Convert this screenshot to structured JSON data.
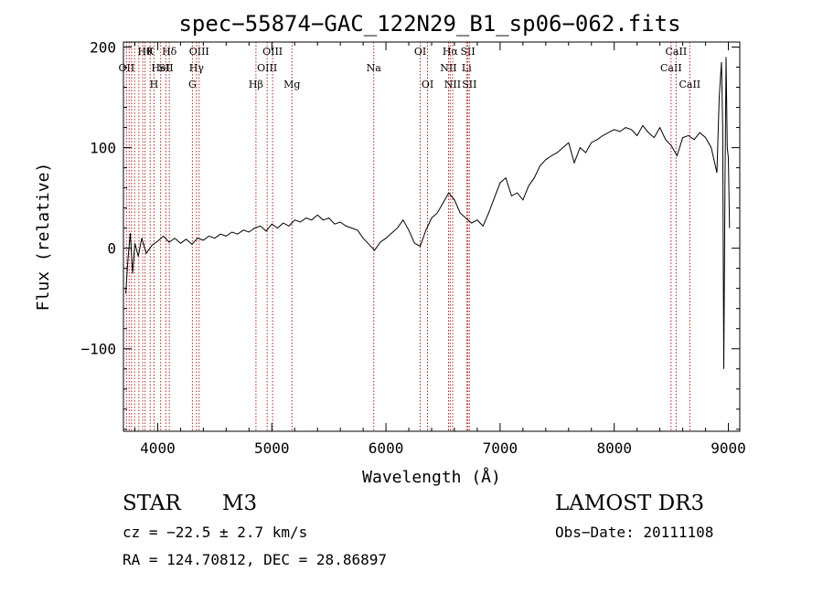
{
  "chart_data": {
    "type": "line",
    "title": "spec−55874−GAC_122N29_B1_sp06−062.fits",
    "xlabel": "Wavelength (Å)",
    "ylabel": "Flux (relative)",
    "xlim": [
      3700,
      9100
    ],
    "ylim": [
      -182,
      205
    ],
    "xticks": [
      {
        "value": 4000,
        "label": "4000"
      },
      {
        "value": 5000,
        "label": "5000"
      },
      {
        "value": 6000,
        "label": "6000"
      },
      {
        "value": 7000,
        "label": "7000"
      },
      {
        "value": 8000,
        "label": "8000"
      },
      {
        "value": 9000,
        "label": "9000"
      }
    ],
    "yticks": [
      {
        "value": -100,
        "label": "−100"
      },
      {
        "value": 0,
        "label": "0"
      },
      {
        "value": 100,
        "label": "100"
      },
      {
        "value": 200,
        "label": "200"
      }
    ],
    "grid": false,
    "series": [
      {
        "x": [
          3720,
          3740,
          3760,
          3780,
          3800,
          3830,
          3860,
          3900,
          3950,
          4000,
          4050,
          4100,
          4150,
          4200,
          4250,
          4300,
          4350,
          4400,
          4450,
          4500,
          4550,
          4600,
          4650,
          4700,
          4750,
          4800,
          4850,
          4900,
          4950,
          5000,
          5050,
          5100,
          5150,
          5200,
          5250,
          5300,
          5350,
          5400,
          5450,
          5500,
          5550,
          5600,
          5650,
          5700,
          5750,
          5800,
          5850,
          5900,
          5950,
          6000,
          6050,
          6100,
          6150,
          6200,
          6250,
          6300,
          6350,
          6400,
          6450,
          6500,
          6550,
          6600,
          6650,
          6700,
          6750,
          6800,
          6850,
          6900,
          6950,
          7000,
          7050,
          7100,
          7150,
          7200,
          7250,
          7300,
          7350,
          7400,
          7450,
          7500,
          7550,
          7600,
          7650,
          7700,
          7750,
          7800,
          7850,
          7900,
          7950,
          8000,
          8050,
          8100,
          8150,
          8200,
          8250,
          8300,
          8350,
          8400,
          8450,
          8500,
          8550,
          8600,
          8650,
          8700,
          8750,
          8800,
          8850,
          8900,
          8920,
          8940,
          8950,
          8960,
          8970,
          8980,
          8990,
          9000,
          9010
        ],
        "y": [
          -45,
          -10,
          15,
          -25,
          5,
          -8,
          10,
          -5,
          3,
          7,
          12,
          6,
          10,
          5,
          9,
          4,
          10,
          8,
          12,
          10,
          14,
          12,
          16,
          14,
          18,
          16,
          20,
          22,
          17,
          24,
          20,
          25,
          22,
          28,
          26,
          30,
          28,
          33,
          28,
          30,
          24,
          26,
          22,
          20,
          18,
          10,
          4,
          -2,
          6,
          10,
          15,
          20,
          28,
          18,
          5,
          2,
          18,
          30,
          35,
          45,
          55,
          48,
          35,
          30,
          25,
          28,
          22,
          35,
          50,
          65,
          70,
          52,
          55,
          48,
          62,
          70,
          82,
          88,
          92,
          95,
          100,
          105,
          85,
          100,
          95,
          105,
          108,
          112,
          115,
          118,
          116,
          120,
          118,
          112,
          122,
          115,
          110,
          120,
          108,
          102,
          92,
          110,
          112,
          108,
          115,
          110,
          100,
          75,
          150,
          185,
          120,
          -120,
          60,
          190,
          100,
          90,
          20
        ]
      }
    ],
    "lines": [
      {
        "wavelength": 3727,
        "label": "OII",
        "row": 1
      },
      {
        "wavelength": 3750,
        "label": "",
        "row": -1
      },
      {
        "wavelength": 3770,
        "label": "",
        "row": -1
      },
      {
        "wavelength": 3798,
        "label": "",
        "row": -1
      },
      {
        "wavelength": 3835,
        "label": "",
        "row": -1
      },
      {
        "wavelength": 3869,
        "label": "",
        "row": -1
      },
      {
        "wavelength": 3889,
        "label": "Hθ",
        "row": 0
      },
      {
        "wavelength": 3934,
        "label": "K",
        "row": 0
      },
      {
        "wavelength": 3968,
        "label": "H",
        "row": 2
      },
      {
        "wavelength": 4026,
        "label": "HeI",
        "row": 1
      },
      {
        "wavelength": 4072,
        "label": "SII",
        "row": 1
      },
      {
        "wavelength": 4102,
        "label": "Hδ",
        "row": 0
      },
      {
        "wavelength": 4304,
        "label": "G",
        "row": 2
      },
      {
        "wavelength": 4340,
        "label": "Hγ",
        "row": 1
      },
      {
        "wavelength": 4363,
        "label": "OIII",
        "row": 0
      },
      {
        "wavelength": 4861,
        "label": "Hβ",
        "row": 2
      },
      {
        "wavelength": 4959,
        "label": "OIII",
        "row": 1
      },
      {
        "wavelength": 5007,
        "label": "OIII",
        "row": 0
      },
      {
        "wavelength": 5176,
        "label": "Mg",
        "row": 2
      },
      {
        "wavelength": 5893,
        "label": "Na",
        "row": 1
      },
      {
        "wavelength": 6300,
        "label": "OI",
        "row": 0
      },
      {
        "wavelength": 6364,
        "label": "OI",
        "row": 2
      },
      {
        "wavelength": 6548,
        "label": "NII",
        "row": 1
      },
      {
        "wavelength": 6563,
        "label": "Hα",
        "row": 0
      },
      {
        "wavelength": 6584,
        "label": "NII",
        "row": 2
      },
      {
        "wavelength": 6707,
        "label": "Li",
        "row": 1
      },
      {
        "wavelength": 6717,
        "label": "SII",
        "row": 0
      },
      {
        "wavelength": 6731,
        "label": "SII",
        "row": 2
      },
      {
        "wavelength": 8498,
        "label": "CaII",
        "row": 1
      },
      {
        "wavelength": 8542,
        "label": "CaII",
        "row": 0
      },
      {
        "wavelength": 8662,
        "label": "CaII",
        "row": 2
      }
    ],
    "colors": {
      "spectrum": "#000000",
      "lines": "#b22222",
      "axes": "#000000"
    }
  },
  "info": {
    "object_class": "STAR",
    "subclass": "M3",
    "survey": "LAMOST DR3",
    "redshift": "cz = −22.5 ± 2.7 km/s",
    "obs_date": "Obs−Date: 20111108",
    "coords": "RA = 124.70812, DEC =  28.86897"
  }
}
